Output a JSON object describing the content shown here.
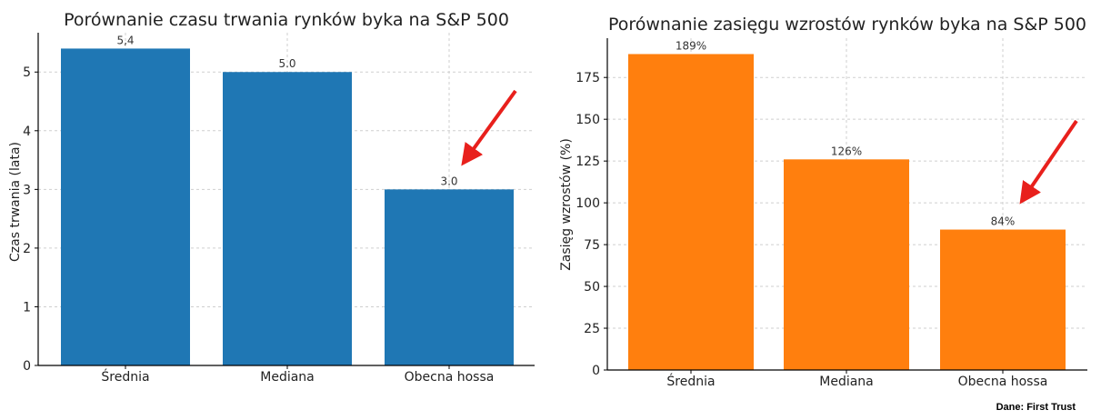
{
  "chart_data": [
    {
      "type": "bar",
      "title": "Porównanie czasu trwania rynków byka na S&P 500",
      "xlabel": "",
      "ylabel": "Czas trwania (lata)",
      "categories": [
        "Średnia",
        "Mediana",
        "Obecna hossa"
      ],
      "values": [
        5.4,
        5.0,
        3.0
      ],
      "value_labels": [
        "5,4",
        "5.0",
        "3.0"
      ],
      "ylim": [
        0,
        5.67
      ],
      "yticks": [
        0,
        1,
        2,
        3,
        4,
        5
      ],
      "grid": true,
      "color": "#1f77b4",
      "annotation": "red arrow pointing at Obecna hossa bar"
    },
    {
      "type": "bar",
      "title": "Porównanie zasięgu wzrostów rynków byka na S&P 500",
      "xlabel": "",
      "ylabel": "Zasięg wzrostów (%)",
      "categories": [
        "Średnia",
        "Mediana",
        "Obecna hossa"
      ],
      "values": [
        189,
        126,
        84
      ],
      "value_labels": [
        "189%",
        "126%",
        "84%"
      ],
      "ylim": [
        0,
        198.5
      ],
      "yticks": [
        0,
        25,
        50,
        75,
        100,
        125,
        150,
        175
      ],
      "grid": true,
      "color": "#ff7f0e",
      "annotation": "red arrow pointing at Obecna hossa bar"
    }
  ],
  "source_note": "Dane: First Trust",
  "colors": {
    "arrow": "#e8201c"
  }
}
